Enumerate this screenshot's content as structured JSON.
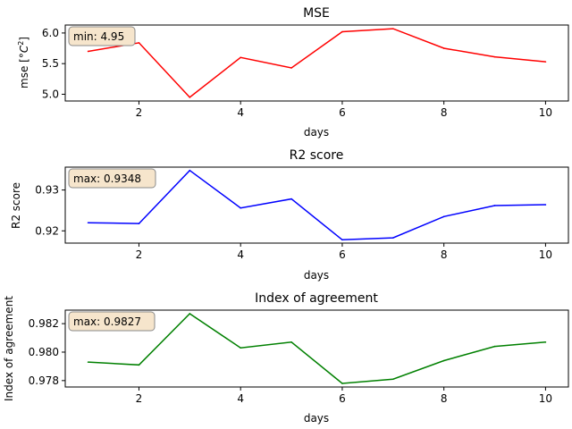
{
  "chart_data": [
    {
      "type": "line",
      "title": "MSE",
      "xlabel": "days",
      "ylabel": "mse [$^\\circ C^2$]",
      "ylabel_base": "mse [",
      "ylabel_unit": "°C",
      "ylabel_sup": "2",
      "ylabel_close": "]",
      "x": [
        1,
        2,
        3,
        4,
        5,
        6,
        7,
        8,
        9,
        10
      ],
      "series": [
        {
          "values": [
            5.7,
            5.84,
            4.95,
            5.6,
            5.43,
            6.02,
            6.07,
            5.75,
            5.61,
            5.53
          ],
          "color": "#ff0000"
        }
      ],
      "xlim": [
        0.55,
        10.45
      ],
      "ylim": [
        4.89,
        6.13
      ],
      "xticks": [
        2,
        4,
        6,
        8,
        10
      ],
      "xtick_labels": [
        "2",
        "4",
        "6",
        "8",
        "10"
      ],
      "yticks": [
        5.0,
        5.5,
        6.0
      ],
      "ytick_labels": [
        "5.0",
        "5.5",
        "6.0"
      ],
      "annotation": "min: 4.95",
      "grid": false
    },
    {
      "type": "line",
      "title": "R2 score",
      "xlabel": "days",
      "ylabel": "R2 score",
      "x": [
        1,
        2,
        3,
        4,
        5,
        6,
        7,
        8,
        9,
        10
      ],
      "series": [
        {
          "values": [
            0.922,
            0.9218,
            0.9348,
            0.9256,
            0.9278,
            0.9178,
            0.9183,
            0.9235,
            0.9262,
            0.9264
          ],
          "color": "#0000ff"
        }
      ],
      "xlim": [
        0.55,
        10.45
      ],
      "ylim": [
        0.917,
        0.9356
      ],
      "xticks": [
        2,
        4,
        6,
        8,
        10
      ],
      "xtick_labels": [
        "2",
        "4",
        "6",
        "8",
        "10"
      ],
      "yticks": [
        0.92,
        0.93
      ],
      "ytick_labels": [
        "0.92",
        "0.93"
      ],
      "annotation": "max: 0.9348",
      "grid": false
    },
    {
      "type": "line",
      "title": "Index of agreement",
      "xlabel": "days",
      "ylabel": "Index of agreement",
      "x": [
        1,
        2,
        3,
        4,
        5,
        6,
        7,
        8,
        9,
        10
      ],
      "series": [
        {
          "values": [
            0.9793,
            0.9791,
            0.9827,
            0.9803,
            0.9807,
            0.9778,
            0.9781,
            0.9794,
            0.9804,
            0.9807
          ],
          "color": "#008000"
        }
      ],
      "xlim": [
        0.55,
        10.45
      ],
      "ylim": [
        0.97755,
        0.98295
      ],
      "xticks": [
        2,
        4,
        6,
        8,
        10
      ],
      "xtick_labels": [
        "2",
        "4",
        "6",
        "8",
        "10"
      ],
      "yticks": [
        0.978,
        0.98,
        0.982
      ],
      "ytick_labels": [
        "0.978",
        "0.980",
        "0.982"
      ],
      "annotation": "max: 0.9827",
      "grid": false
    }
  ],
  "colors": {
    "annotation_box_fill": "#f6e5cc",
    "annotation_box_stroke": "#8a8a8a"
  }
}
